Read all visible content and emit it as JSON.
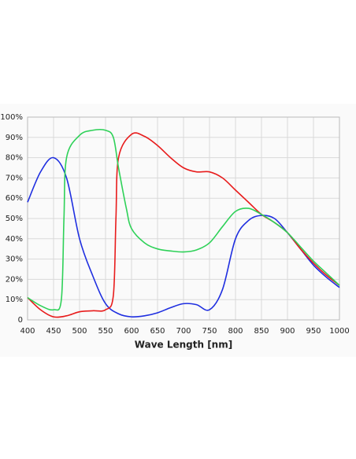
{
  "chart_data": {
    "type": "line",
    "xlabel": "Wave Length [nm]",
    "xlim": [
      400,
      1000
    ],
    "xticks": [
      400,
      450,
      500,
      550,
      600,
      650,
      700,
      750,
      800,
      850,
      900,
      950,
      1000
    ],
    "ylim": [
      0,
      100
    ],
    "yticks": [
      0,
      {
        "value": 10,
        "label": "10%"
      },
      {
        "value": 20,
        "label": "20%"
      },
      {
        "value": 30,
        "label": "30%"
      },
      {
        "value": 40,
        "label": "40%"
      },
      {
        "value": 50,
        "label": "50%"
      },
      {
        "value": 60,
        "label": "60%"
      },
      {
        "value": 70,
        "label": "70%"
      },
      {
        "value": 80,
        "label": "80%"
      },
      {
        "value": 90,
        "label": "90%"
      },
      {
        "value": 100,
        "label": "100%"
      }
    ],
    "grid": true,
    "series": [
      {
        "color": "#1f2fe0",
        "x": [
          400,
          425,
          450,
          475,
          500,
          525,
          550,
          575,
          600,
          625,
          650,
          675,
          700,
          725,
          750,
          775,
          800,
          825,
          850,
          875,
          900,
          925,
          950,
          975,
          1000
        ],
        "values": [
          58,
          73,
          80,
          70,
          40,
          22,
          8,
          3,
          1.5,
          2,
          3.5,
          6,
          8,
          7.5,
          5,
          15,
          40,
          49,
          51.5,
          50,
          43,
          35,
          27,
          21,
          16
        ]
      },
      {
        "color": "#e81c1c",
        "x": [
          400,
          425,
          450,
          475,
          500,
          525,
          550,
          565,
          570,
          575,
          600,
          625,
          650,
          675,
          700,
          725,
          750,
          775,
          800,
          825,
          850,
          875,
          900,
          925,
          950,
          975,
          1000
        ],
        "values": [
          11,
          5,
          1.5,
          2,
          4,
          4.5,
          5,
          12,
          50,
          80,
          91.5,
          90.5,
          86,
          80,
          75,
          73,
          73,
          70,
          64,
          58,
          52,
          48,
          43,
          35,
          28,
          22,
          17
        ]
      },
      {
        "color": "#2ed158",
        "x": [
          400,
          425,
          450,
          465,
          470,
          475,
          500,
          525,
          550,
          565,
          575,
          590,
          600,
          625,
          650,
          675,
          700,
          725,
          750,
          775,
          800,
          825,
          850,
          875,
          900,
          925,
          950,
          975,
          1000
        ],
        "values": [
          11,
          7,
          5,
          10,
          50,
          80,
          91,
          93.5,
          93.5,
          90,
          75,
          55,
          45,
          38,
          35,
          34,
          33.5,
          34.5,
          38,
          46,
          53.5,
          55,
          52,
          48,
          43,
          36,
          29,
          23,
          17
        ]
      }
    ]
  }
}
